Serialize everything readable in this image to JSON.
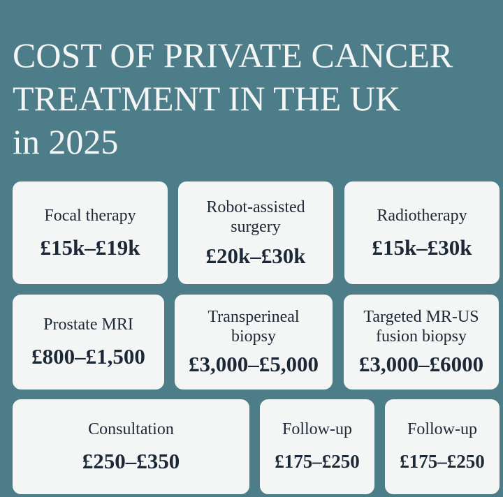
{
  "title": [
    "COST OF PRIVATE CANCER",
    "TREATMENT IN THE UK",
    "in 2025"
  ],
  "cards": [
    {
      "label": "Focal therapy",
      "price": "£15k–£19k"
    },
    {
      "label": "Robot-assisted surgery",
      "price": "£20k–£30k"
    },
    {
      "label": "Radiotherapy",
      "price": "£15k–£30k"
    },
    {
      "label": "Prostate MRI",
      "price": "£800–£1,500"
    },
    {
      "label": "Transperineal biopsy",
      "price": "£3,000–£5,000"
    },
    {
      "label": "Targeted MR-US fusion biopsy",
      "price": "£3,000–£6000"
    },
    {
      "label": "Consultation",
      "price": "£250–£350"
    },
    {
      "label": "Follow-up",
      "price": "£175–£250"
    },
    {
      "label": "Follow-up",
      "price": "£175–£250"
    }
  ]
}
